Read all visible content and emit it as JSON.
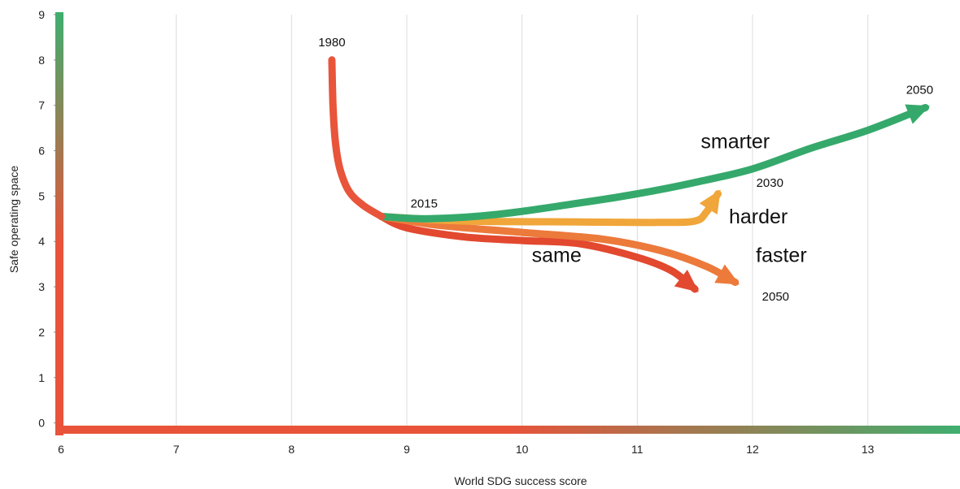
{
  "chart_data": {
    "type": "line",
    "title": "",
    "xlabel": "World SDG success score",
    "ylabel": "Safe operating space",
    "xlim": [
      6,
      13.8
    ],
    "ylim": [
      -0.15,
      9
    ],
    "x_ticks": [
      6,
      7,
      8,
      9,
      10,
      11,
      12,
      13
    ],
    "y_ticks": [
      0,
      1,
      2,
      3,
      4,
      5,
      6,
      7,
      8,
      9
    ],
    "grid": "vertical",
    "axis_colors": {
      "low": "#e8533a",
      "high": "#3fae6f"
    },
    "series": [
      {
        "name": "",
        "color": "#e8553a",
        "arrow": false,
        "points": [
          [
            8.35,
            8
          ],
          [
            8.36,
            7
          ],
          [
            8.38,
            6.2
          ],
          [
            8.42,
            5.6
          ],
          [
            8.5,
            5.1
          ],
          [
            8.62,
            4.8
          ],
          [
            8.78,
            4.55
          ]
        ]
      },
      {
        "name": "same",
        "color": "#e2492f",
        "arrow": true,
        "points": [
          [
            8.78,
            4.55
          ],
          [
            9,
            4.3
          ],
          [
            9.5,
            4.1
          ],
          [
            10,
            4.02
          ],
          [
            10.5,
            3.95
          ],
          [
            11,
            3.65
          ],
          [
            11.3,
            3.35
          ],
          [
            11.5,
            2.95
          ]
        ]
      },
      {
        "name": "faster",
        "color": "#ec7a3b",
        "arrow": true,
        "points": [
          [
            8.78,
            4.55
          ],
          [
            9.3,
            4.35
          ],
          [
            10,
            4.2
          ],
          [
            10.7,
            4.05
          ],
          [
            11.2,
            3.8
          ],
          [
            11.6,
            3.45
          ],
          [
            11.85,
            3.1
          ]
        ]
      },
      {
        "name": "harder",
        "color": "#f0a63a",
        "arrow": true,
        "points": [
          [
            8.78,
            4.55
          ],
          [
            9.5,
            4.45
          ],
          [
            10.5,
            4.43
          ],
          [
            11.2,
            4.42
          ],
          [
            11.5,
            4.45
          ],
          [
            11.6,
            4.65
          ],
          [
            11.7,
            5.05
          ]
        ]
      },
      {
        "name": "smarter",
        "color": "#35a96b",
        "arrow": true,
        "points": [
          [
            8.78,
            4.55
          ],
          [
            9.2,
            4.5
          ],
          [
            9.8,
            4.6
          ],
          [
            10.5,
            4.85
          ],
          [
            11,
            5.05
          ],
          [
            11.5,
            5.3
          ],
          [
            12,
            5.6
          ],
          [
            12.5,
            6.05
          ],
          [
            13,
            6.45
          ],
          [
            13.5,
            6.95
          ]
        ]
      }
    ],
    "annotations": [
      {
        "text": "1980",
        "x": 8.35,
        "y": 8.3,
        "kind": "year"
      },
      {
        "text": "2015",
        "x": 9.15,
        "y": 4.75,
        "kind": "year"
      },
      {
        "text": "2030",
        "x": 12.15,
        "y": 5.2,
        "kind": "year"
      },
      {
        "text": "2050",
        "x": 13.45,
        "y": 7.25,
        "kind": "year"
      },
      {
        "text": "2050",
        "x": 12.2,
        "y": 2.7,
        "kind": "year"
      },
      {
        "text": "smarter",
        "x": 11.85,
        "y": 6.05,
        "kind": "scenario"
      },
      {
        "text": "harder",
        "x": 12.05,
        "y": 4.4,
        "kind": "scenario"
      },
      {
        "text": "same",
        "x": 10.3,
        "y": 3.55,
        "kind": "scenario"
      },
      {
        "text": "faster",
        "x": 12.25,
        "y": 3.55,
        "kind": "scenario"
      }
    ]
  }
}
